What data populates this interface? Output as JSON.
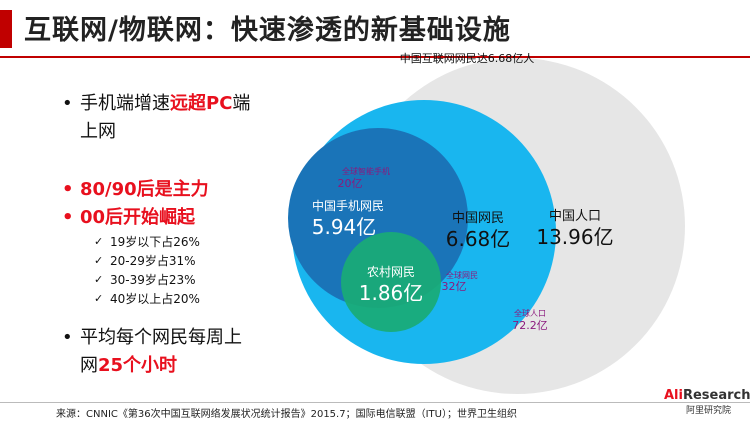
{
  "title": "互联网/物联网：快速渗透的新基础设施",
  "bullets": [
    {
      "prefix": "手机端增速",
      "highlight": "远超PC",
      "suffix": "端",
      "line2": "上网"
    },
    {
      "text": "80/90后是主力"
    },
    {
      "text": "00后开始崛起"
    },
    {
      "prefix": "平均每个网民每周上",
      "line2_prefix": "网",
      "line2_highlight": "25个小时"
    }
  ],
  "sub_items": [
    "19岁以下占26%",
    "20-29岁占31%",
    "30-39岁占23%",
    "40岁以上占20%"
  ],
  "diagram": {
    "top_label": "中国互联网网民达6.68亿人",
    "outer": {
      "label": "中国人口",
      "value": "13.96亿"
    },
    "internet": {
      "label": "中国网民",
      "value": "6.68亿"
    },
    "mobile": {
      "label": "中国手机网民",
      "value": "5.94亿"
    },
    "rural": {
      "label": "农村网民",
      "value": "1.86亿"
    },
    "global_smartphone": {
      "label": "全球智能手机",
      "value": "20亿"
    },
    "global_internet": {
      "label": "全球网民",
      "value": "32亿"
    },
    "global_population": {
      "label": "全球人口",
      "value": "72.2亿"
    },
    "colors": {
      "outer": "#e6e6e6",
      "internet": "#19b6ef",
      "mobile": "#1a74b8",
      "rural": "#1aab76",
      "global": "#8b1a7e"
    }
  },
  "logo": {
    "ali": "Ali",
    "research": "Research",
    "sub": "阿里研究院"
  },
  "source": "来源：CNNIC《第36次中国互联网络发展状况统计报告》2015.7；国际电信联盟（ITU）；世界卫生组织"
}
